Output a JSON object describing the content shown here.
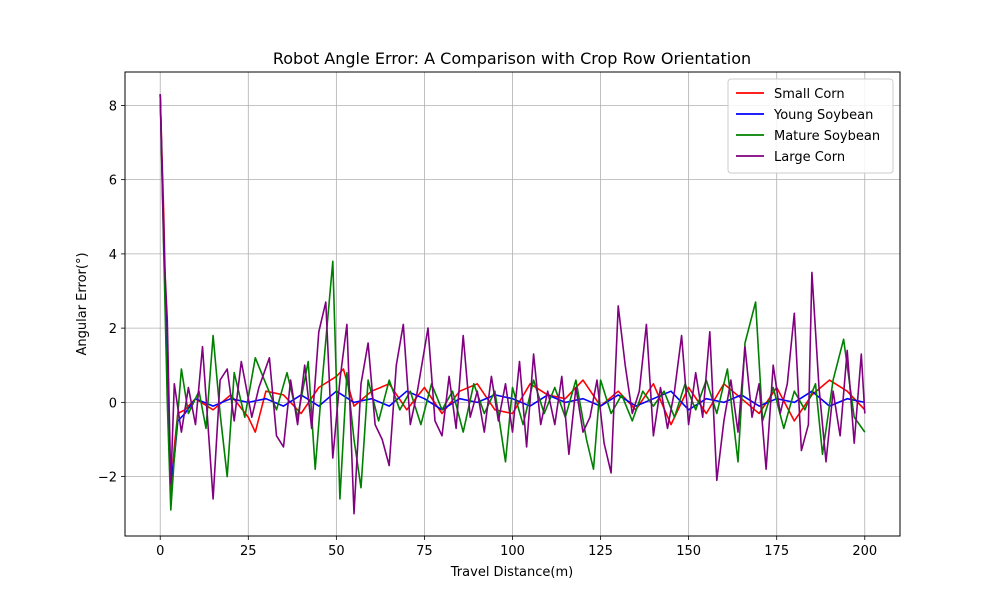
{
  "chart_data": {
    "type": "line",
    "title": "Robot Angle Error: A Comparison with Crop Row Orientation",
    "xlabel": "Travel Distance(m)",
    "ylabel": "Angular Error(°)",
    "xlim": [
      -10,
      210
    ],
    "ylim": [
      -3.6,
      8.9
    ],
    "xticks": [
      0,
      25,
      50,
      75,
      100,
      125,
      150,
      175,
      200
    ],
    "xtick_labels": [
      "0",
      "25",
      "50",
      "75",
      "100",
      "125",
      "150",
      "175",
      "200"
    ],
    "yticks": [
      -2,
      0,
      2,
      4,
      6,
      8
    ],
    "ytick_labels": [
      "−2",
      "0",
      "2",
      "4",
      "6",
      "8"
    ],
    "grid": true,
    "legend_position": "top-right",
    "series": [
      {
        "name": "Small Corn",
        "color": "#ff0000",
        "points": [
          [
            0,
            8.3
          ],
          [
            1,
            5.0
          ],
          [
            2,
            0.8
          ],
          [
            3,
            -2.6
          ],
          [
            4,
            -1.2
          ],
          [
            5,
            -0.3
          ],
          [
            7,
            -0.2
          ],
          [
            10,
            0.1
          ],
          [
            15,
            -0.2
          ],
          [
            20,
            0.2
          ],
          [
            25,
            -0.4
          ],
          [
            27,
            -0.8
          ],
          [
            30,
            0.3
          ],
          [
            35,
            0.2
          ],
          [
            40,
            -0.3
          ],
          [
            45,
            0.4
          ],
          [
            50,
            0.7
          ],
          [
            52,
            0.9
          ],
          [
            55,
            -0.1
          ],
          [
            60,
            0.3
          ],
          [
            65,
            0.5
          ],
          [
            70,
            -0.2
          ],
          [
            75,
            0.4
          ],
          [
            80,
            -0.3
          ],
          [
            85,
            0.3
          ],
          [
            90,
            0.5
          ],
          [
            95,
            -0.2
          ],
          [
            100,
            -0.3
          ],
          [
            105,
            0.5
          ],
          [
            110,
            0.2
          ],
          [
            115,
            0.1
          ],
          [
            120,
            0.6
          ],
          [
            125,
            -0.1
          ],
          [
            130,
            0.3
          ],
          [
            135,
            -0.2
          ],
          [
            140,
            0.5
          ],
          [
            145,
            -0.6
          ],
          [
            150,
            0.4
          ],
          [
            155,
            -0.3
          ],
          [
            160,
            0.5
          ],
          [
            165,
            0.1
          ],
          [
            170,
            -0.3
          ],
          [
            175,
            0.4
          ],
          [
            180,
            -0.5
          ],
          [
            185,
            0.2
          ],
          [
            190,
            0.6
          ],
          [
            195,
            0.3
          ],
          [
            200,
            -0.2
          ]
        ]
      },
      {
        "name": "Young Soybean",
        "color": "#0000ff",
        "points": [
          [
            0,
            8.3
          ],
          [
            1,
            4.5
          ],
          [
            2,
            0.4
          ],
          [
            3,
            -2.1
          ],
          [
            4,
            -1.5
          ],
          [
            5,
            -0.5
          ],
          [
            7,
            -0.3
          ],
          [
            10,
            0.1
          ],
          [
            15,
            -0.1
          ],
          [
            20,
            0.1
          ],
          [
            25,
            0.0
          ],
          [
            30,
            0.1
          ],
          [
            35,
            -0.1
          ],
          [
            40,
            0.2
          ],
          [
            45,
            -0.1
          ],
          [
            50,
            0.3
          ],
          [
            55,
            0.0
          ],
          [
            60,
            0.1
          ],
          [
            65,
            -0.1
          ],
          [
            70,
            0.3
          ],
          [
            75,
            0.1
          ],
          [
            80,
            -0.2
          ],
          [
            85,
            0.1
          ],
          [
            90,
            0.0
          ],
          [
            95,
            0.2
          ],
          [
            100,
            0.1
          ],
          [
            105,
            -0.1
          ],
          [
            110,
            0.2
          ],
          [
            115,
            0.0
          ],
          [
            120,
            0.1
          ],
          [
            125,
            -0.1
          ],
          [
            130,
            0.2
          ],
          [
            135,
            -0.1
          ],
          [
            140,
            0.1
          ],
          [
            145,
            0.3
          ],
          [
            150,
            -0.2
          ],
          [
            155,
            0.1
          ],
          [
            160,
            0.0
          ],
          [
            165,
            0.2
          ],
          [
            170,
            -0.1
          ],
          [
            175,
            0.1
          ],
          [
            180,
            0.0
          ],
          [
            185,
            0.3
          ],
          [
            190,
            -0.1
          ],
          [
            195,
            0.1
          ],
          [
            200,
            0.0
          ]
        ]
      },
      {
        "name": "Mature Soybean",
        "color": "#008000",
        "points": [
          [
            0,
            8.3
          ],
          [
            1,
            4.0
          ],
          [
            2,
            0.0
          ],
          [
            3,
            -2.9
          ],
          [
            4,
            -1.5
          ],
          [
            6,
            0.9
          ],
          [
            8,
            -0.3
          ],
          [
            11,
            0.3
          ],
          [
            13,
            -0.7
          ],
          [
            15,
            1.8
          ],
          [
            17,
            -0.3
          ],
          [
            19,
            -2.0
          ],
          [
            21,
            0.8
          ],
          [
            24,
            -0.4
          ],
          [
            27,
            1.2
          ],
          [
            30,
            0.5
          ],
          [
            33,
            -0.2
          ],
          [
            36,
            0.8
          ],
          [
            39,
            -0.4
          ],
          [
            42,
            1.1
          ],
          [
            44,
            -1.8
          ],
          [
            46,
            0.6
          ],
          [
            49,
            3.8
          ],
          [
            51,
            -2.6
          ],
          [
            53,
            0.8
          ],
          [
            55,
            -1.0
          ],
          [
            57,
            -2.3
          ],
          [
            59,
            0.6
          ],
          [
            62,
            -0.5
          ],
          [
            65,
            0.6
          ],
          [
            68,
            -0.2
          ],
          [
            71,
            0.3
          ],
          [
            74,
            -0.6
          ],
          [
            77,
            0.5
          ],
          [
            80,
            -0.2
          ],
          [
            83,
            0.3
          ],
          [
            86,
            -0.8
          ],
          [
            89,
            0.5
          ],
          [
            92,
            -0.3
          ],
          [
            95,
            0.3
          ],
          [
            98,
            -1.6
          ],
          [
            100,
            0.4
          ],
          [
            103,
            -0.6
          ],
          [
            106,
            0.6
          ],
          [
            109,
            -0.3
          ],
          [
            112,
            0.4
          ],
          [
            115,
            -0.4
          ],
          [
            118,
            0.6
          ],
          [
            121,
            -1.0
          ],
          [
            123,
            -1.8
          ],
          [
            125,
            0.6
          ],
          [
            128,
            -0.3
          ],
          [
            131,
            0.2
          ],
          [
            134,
            -0.5
          ],
          [
            137,
            0.3
          ],
          [
            140,
            -0.1
          ],
          [
            143,
            0.3
          ],
          [
            146,
            -0.4
          ],
          [
            149,
            0.5
          ],
          [
            152,
            -0.2
          ],
          [
            155,
            0.6
          ],
          [
            158,
            -0.3
          ],
          [
            161,
            0.9
          ],
          [
            164,
            -1.6
          ],
          [
            166,
            1.6
          ],
          [
            169,
            2.7
          ],
          [
            171,
            -0.5
          ],
          [
            174,
            0.4
          ],
          [
            177,
            -0.7
          ],
          [
            180,
            0.3
          ],
          [
            183,
            -0.2
          ],
          [
            186,
            0.5
          ],
          [
            188,
            -1.4
          ],
          [
            191,
            0.6
          ],
          [
            194,
            1.7
          ],
          [
            197,
            -0.4
          ],
          [
            200,
            -0.8
          ]
        ]
      },
      {
        "name": "Large Corn",
        "color": "#800080",
        "points": [
          [
            0,
            8.3
          ],
          [
            1,
            4.2
          ],
          [
            2,
            2.2
          ],
          [
            3,
            -2.2
          ],
          [
            4,
            0.5
          ],
          [
            6,
            -0.8
          ],
          [
            8,
            0.4
          ],
          [
            10,
            -0.6
          ],
          [
            12,
            1.5
          ],
          [
            14,
            -1.2
          ],
          [
            15,
            -2.6
          ],
          [
            17,
            0.6
          ],
          [
            19,
            0.9
          ],
          [
            21,
            -0.5
          ],
          [
            23,
            1.1
          ],
          [
            26,
            -0.4
          ],
          [
            28,
            0.4
          ],
          [
            31,
            1.2
          ],
          [
            33,
            -0.9
          ],
          [
            35,
            -1.2
          ],
          [
            37,
            0.6
          ],
          [
            39,
            -0.6
          ],
          [
            41,
            1.0
          ],
          [
            43,
            -0.7
          ],
          [
            45,
            1.9
          ],
          [
            47,
            2.7
          ],
          [
            49,
            -1.5
          ],
          [
            51,
            0.6
          ],
          [
            53,
            2.1
          ],
          [
            55,
            -3.0
          ],
          [
            57,
            0.5
          ],
          [
            59,
            1.6
          ],
          [
            61,
            -0.6
          ],
          [
            63,
            -1.0
          ],
          [
            65,
            -1.7
          ],
          [
            67,
            1.0
          ],
          [
            69,
            2.1
          ],
          [
            71,
            -0.6
          ],
          [
            73,
            0.3
          ],
          [
            76,
            2.0
          ],
          [
            78,
            -0.5
          ],
          [
            80,
            -0.9
          ],
          [
            82,
            0.7
          ],
          [
            84,
            -0.7
          ],
          [
            86,
            1.8
          ],
          [
            88,
            -0.4
          ],
          [
            90,
            0.3
          ],
          [
            92,
            -0.8
          ],
          [
            94,
            0.7
          ],
          [
            96,
            -0.5
          ],
          [
            98,
            0.5
          ],
          [
            100,
            -0.8
          ],
          [
            102,
            1.1
          ],
          [
            104,
            -1.2
          ],
          [
            106,
            1.3
          ],
          [
            108,
            -0.6
          ],
          [
            110,
            0.3
          ],
          [
            112,
            -0.6
          ],
          [
            114,
            0.7
          ],
          [
            116,
            -1.4
          ],
          [
            118,
            0.4
          ],
          [
            120,
            -0.8
          ],
          [
            122,
            -0.4
          ],
          [
            124,
            0.6
          ],
          [
            126,
            -1.1
          ],
          [
            128,
            -1.9
          ],
          [
            130,
            2.6
          ],
          [
            132,
            1.0
          ],
          [
            134,
            -0.3
          ],
          [
            136,
            0.3
          ],
          [
            138,
            2.1
          ],
          [
            140,
            -0.9
          ],
          [
            142,
            0.4
          ],
          [
            144,
            -0.7
          ],
          [
            146,
            0.3
          ],
          [
            148,
            1.8
          ],
          [
            150,
            -0.6
          ],
          [
            152,
            0.8
          ],
          [
            154,
            -0.4
          ],
          [
            156,
            1.9
          ],
          [
            158,
            -2.1
          ],
          [
            160,
            -0.5
          ],
          [
            162,
            0.6
          ],
          [
            164,
            -0.8
          ],
          [
            166,
            1.5
          ],
          [
            168,
            -0.4
          ],
          [
            170,
            0.5
          ],
          [
            172,
            -1.8
          ],
          [
            174,
            1.0
          ],
          [
            176,
            -0.3
          ],
          [
            178,
            0.5
          ],
          [
            180,
            2.4
          ],
          [
            182,
            -1.3
          ],
          [
            184,
            -0.6
          ],
          [
            185,
            3.5
          ],
          [
            187,
            0.4
          ],
          [
            189,
            -1.6
          ],
          [
            191,
            0.3
          ],
          [
            193,
            -0.9
          ],
          [
            195,
            1.4
          ],
          [
            197,
            -1.1
          ],
          [
            199,
            1.3
          ],
          [
            200,
            -0.3
          ]
        ]
      }
    ]
  }
}
